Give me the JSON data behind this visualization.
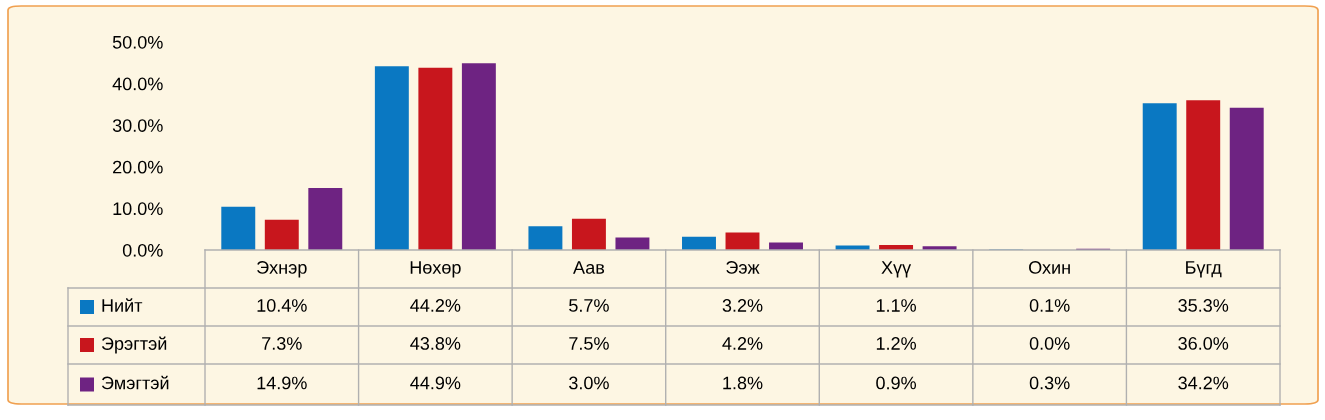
{
  "chart_data": {
    "type": "bar",
    "categories": [
      "Эхнэр",
      "Нөхөр",
      "Аав",
      "Ээж",
      "Хүү",
      "Охин",
      "Бүгд"
    ],
    "series": [
      {
        "name": "Нийт",
        "color": "#0a78c2",
        "values": [
          10.4,
          44.2,
          5.7,
          3.2,
          1.1,
          0.1,
          35.3
        ],
        "value_labels": [
          "10.4%",
          "44.2%",
          "5.7%",
          "3.2%",
          "1.1%",
          "0.1%",
          "35.3%"
        ]
      },
      {
        "name": "Эрэгтэй",
        "color": "#c8161d",
        "values": [
          7.3,
          43.8,
          7.5,
          4.2,
          1.2,
          0.0,
          36.0
        ],
        "value_labels": [
          "7.3%",
          "43.8%",
          "7.5%",
          "4.2%",
          "1.2%",
          "0.0%",
          "36.0%"
        ]
      },
      {
        "name": "Эмэгтэй",
        "color": "#6e2382",
        "values": [
          14.9,
          44.9,
          3.0,
          1.8,
          0.9,
          0.3,
          34.2
        ],
        "value_labels": [
          "14.9%",
          "44.9%",
          "3.0%",
          "1.8%",
          "0.9%",
          "0.3%",
          "34.2%"
        ]
      }
    ],
    "ylim": [
      0,
      50
    ],
    "yticks": [
      {
        "value": 0,
        "label": "0.0%"
      },
      {
        "value": 10,
        "label": "10.0%"
      },
      {
        "value": 20,
        "label": "20.0%"
      },
      {
        "value": 30,
        "label": "30.0%"
      },
      {
        "value": 40,
        "label": "40.0%"
      },
      {
        "value": 50,
        "label": "50.0%"
      }
    ],
    "grid": false,
    "legend": "bottom left"
  }
}
